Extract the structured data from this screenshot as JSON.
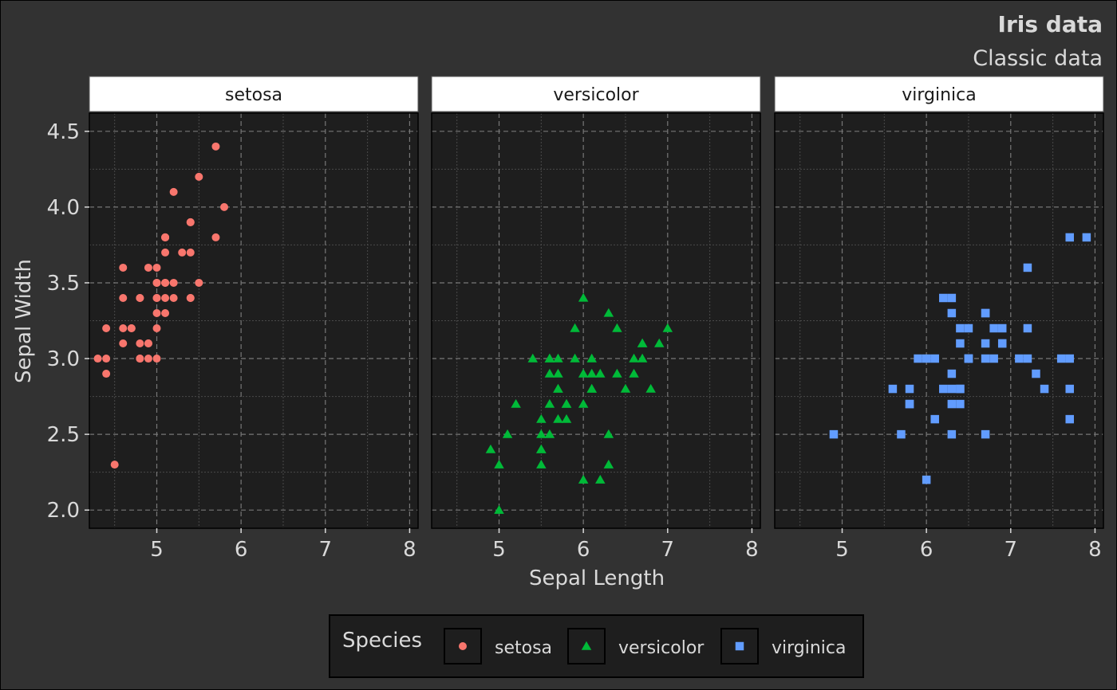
{
  "chart_data": {
    "type": "scatter",
    "title": "Iris data",
    "subtitle": "Classic data",
    "xlabel": "Sepal Length",
    "ylabel": "Sepal Width",
    "xlim": [
      4.2,
      8.1
    ],
    "ylim": [
      1.88,
      4.62
    ],
    "x_ticks": [
      5,
      6,
      7,
      8
    ],
    "y_ticks": [
      "2.0",
      "2.5",
      "3.0",
      "3.5",
      "4.0",
      "4.5"
    ],
    "grid": true,
    "legend_title": "Species",
    "legend_position": "bottom",
    "colors": {
      "background": "#323232",
      "panel": "#1e1e1e",
      "text": "#d9d9d9",
      "strip_bg": "#ffffff",
      "strip_text": "#1a1a1a"
    },
    "series": [
      {
        "name": "setosa",
        "color": "#f8766d",
        "shape": "circle",
        "x": [
          5.1,
          4.9,
          4.7,
          4.6,
          5.0,
          5.4,
          4.6,
          5.0,
          4.4,
          4.9,
          5.4,
          4.8,
          4.8,
          4.3,
          5.8,
          5.7,
          5.4,
          5.1,
          5.7,
          5.1,
          5.4,
          5.1,
          4.6,
          5.1,
          4.8,
          5.0,
          5.0,
          5.2,
          5.2,
          4.7,
          4.8,
          5.4,
          5.2,
          5.5,
          4.9,
          5.0,
          5.5,
          4.9,
          4.4,
          5.1,
          5.0,
          4.5,
          4.4,
          5.0,
          5.1,
          4.8,
          5.1,
          4.6,
          5.3,
          5.0
        ],
        "y": [
          3.5,
          3.0,
          3.2,
          3.1,
          3.6,
          3.9,
          3.4,
          3.4,
          2.9,
          3.1,
          3.7,
          3.4,
          3.0,
          3.0,
          4.0,
          4.4,
          3.9,
          3.5,
          3.8,
          3.8,
          3.4,
          3.7,
          3.6,
          3.3,
          3.4,
          3.0,
          3.4,
          3.5,
          3.4,
          3.2,
          3.1,
          3.4,
          4.1,
          4.2,
          3.1,
          3.2,
          3.5,
          3.6,
          3.0,
          3.4,
          3.5,
          2.3,
          3.2,
          3.5,
          3.8,
          3.0,
          3.8,
          3.2,
          3.7,
          3.3
        ]
      },
      {
        "name": "versicolor",
        "color": "#00ba38",
        "shape": "triangle",
        "x": [
          7.0,
          6.4,
          6.9,
          5.5,
          6.5,
          5.7,
          6.3,
          4.9,
          6.6,
          5.2,
          5.0,
          5.9,
          6.0,
          6.1,
          5.6,
          6.7,
          5.6,
          5.8,
          6.2,
          5.6,
          5.9,
          6.1,
          6.3,
          6.1,
          6.4,
          6.6,
          6.8,
          6.7,
          6.0,
          5.7,
          5.5,
          5.5,
          5.8,
          6.0,
          5.4,
          6.0,
          6.7,
          6.3,
          5.6,
          5.5,
          5.5,
          6.1,
          5.8,
          5.0,
          5.6,
          5.7,
          5.7,
          6.2,
          5.1,
          5.7
        ],
        "y": [
          3.2,
          3.2,
          3.1,
          2.3,
          2.8,
          2.8,
          3.3,
          2.4,
          2.9,
          2.7,
          2.0,
          3.0,
          2.2,
          2.9,
          2.9,
          3.1,
          3.0,
          2.7,
          2.2,
          2.5,
          3.2,
          2.8,
          2.5,
          2.8,
          2.9,
          3.0,
          2.8,
          3.0,
          2.9,
          2.6,
          2.4,
          2.4,
          2.7,
          2.7,
          3.0,
          3.4,
          3.1,
          2.3,
          3.0,
          2.5,
          2.6,
          3.0,
          2.6,
          2.3,
          2.7,
          3.0,
          2.9,
          2.9,
          2.5,
          2.8
        ]
      },
      {
        "name": "virginica",
        "color": "#619cff",
        "shape": "square",
        "x": [
          6.3,
          5.8,
          7.1,
          6.3,
          6.5,
          7.6,
          4.9,
          7.3,
          6.7,
          7.2,
          6.5,
          6.4,
          6.8,
          5.7,
          5.8,
          6.4,
          6.5,
          7.7,
          7.7,
          6.0,
          6.9,
          5.6,
          7.7,
          6.3,
          6.7,
          7.2,
          6.2,
          6.1,
          6.4,
          7.2,
          7.4,
          7.9,
          6.4,
          6.3,
          6.1,
          7.7,
          6.3,
          6.4,
          6.0,
          6.9,
          6.7,
          6.9,
          5.8,
          6.8,
          6.7,
          6.7,
          6.3,
          6.5,
          6.2,
          5.9
        ],
        "y": [
          3.3,
          2.7,
          3.0,
          2.9,
          3.0,
          3.0,
          2.5,
          2.9,
          2.5,
          3.6,
          3.2,
          2.7,
          3.0,
          2.5,
          2.8,
          3.2,
          3.0,
          3.8,
          2.6,
          2.2,
          3.2,
          2.8,
          2.8,
          2.7,
          3.3,
          3.2,
          2.8,
          3.0,
          2.8,
          3.0,
          2.8,
          3.8,
          2.8,
          2.8,
          2.6,
          3.0,
          3.4,
          3.1,
          3.0,
          3.1,
          3.1,
          3.1,
          2.7,
          3.2,
          3.3,
          3.0,
          2.5,
          3.0,
          3.4,
          3.0
        ]
      }
    ]
  }
}
